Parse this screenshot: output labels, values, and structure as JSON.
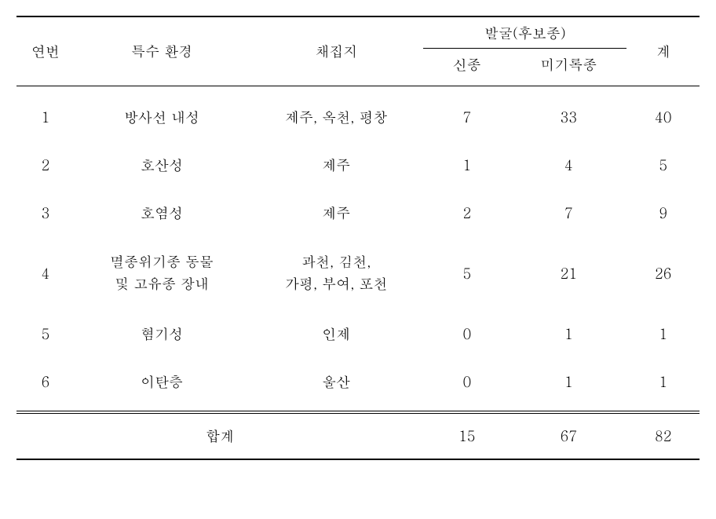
{
  "table": {
    "headers": {
      "number": "연번",
      "environment": "특수 환경",
      "location": "채집지",
      "discovery": "발굴(후보종)",
      "new_species": "신종",
      "unrecorded": "미기록종",
      "total": "계"
    },
    "rows": [
      {
        "num": "1",
        "env": "방사선 내성",
        "loc": "제주, 옥천, 평창",
        "new_species": "7",
        "unrecorded": "33",
        "total": "40"
      },
      {
        "num": "2",
        "env": "호산성",
        "loc": "제주",
        "new_species": "1",
        "unrecorded": "4",
        "total": "5"
      },
      {
        "num": "3",
        "env": "호염성",
        "loc": "제주",
        "new_species": "2",
        "unrecorded": "7",
        "total": "9"
      },
      {
        "num": "4",
        "env": "멸종위기종 동물\n및 고유종 장내",
        "loc": "과천, 김천,\n가평, 부여, 포천",
        "new_species": "5",
        "unrecorded": "21",
        "total": "26"
      },
      {
        "num": "5",
        "env": "혐기성",
        "loc": "인제",
        "new_species": "0",
        "unrecorded": "1",
        "total": "1"
      },
      {
        "num": "6",
        "env": "이탄층",
        "loc": "울산",
        "new_species": "0",
        "unrecorded": "1",
        "total": "1"
      }
    ],
    "footer": {
      "label": "합계",
      "new_species": "15",
      "unrecorded": "67",
      "total": "82"
    },
    "colors": {
      "text": "#000000",
      "border": "#000000",
      "background": "#ffffff"
    },
    "fontsize": 18
  }
}
